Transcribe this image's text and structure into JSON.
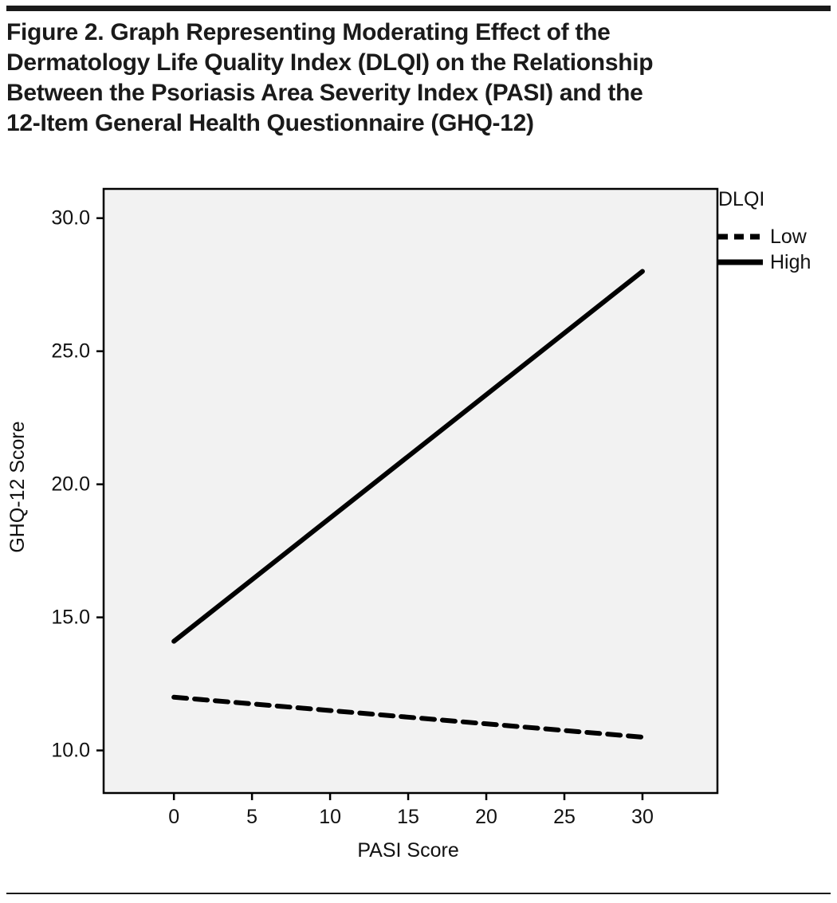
{
  "figure": {
    "title_lines": [
      "Figure 2. Graph Representing Moderating Effect of the",
      "Dermatology Life Quality Index (DLQI) on the Relationship",
      "Between the Psoriasis Area Severity Index (PASI) and the",
      "12-Item General Health Questionnaire (GHQ-12)"
    ]
  },
  "chart_data": {
    "type": "line",
    "title": "Figure 2. Graph Representing Moderating Effect of the Dermatology Life Quality Index (DLQI) on the Relationship Between the Psoriasis Area Severity Index (PASI) and the 12-Item General Health Questionnaire (GHQ-12)",
    "xlabel": "PASI Score",
    "ylabel": "GHQ-12 Score",
    "x_ticks": [
      0,
      5,
      10,
      15,
      20,
      25,
      30
    ],
    "x_tick_labels": [
      "0",
      "5",
      "10",
      "15",
      "20",
      "25",
      "30"
    ],
    "y_ticks": [
      10,
      15,
      20,
      25,
      30
    ],
    "y_tick_labels": [
      "10.0",
      "15.0",
      "20.0",
      "25.0",
      "30.0"
    ],
    "xlim": [
      -4.5,
      34.8
    ],
    "ylim": [
      8.4,
      31.1
    ],
    "grid": false,
    "plot_background": "#f2f2f2",
    "line_color": "#000000",
    "legend": {
      "title": "DLQI",
      "position": "top-right-outside",
      "entries": [
        "Low",
        "High"
      ]
    },
    "series": [
      {
        "name": "Low",
        "style": "dashed",
        "x": [
          0,
          30
        ],
        "y": [
          12.0,
          10.5
        ]
      },
      {
        "name": "High",
        "style": "solid",
        "x": [
          0,
          30
        ],
        "y": [
          14.1,
          28.0
        ]
      }
    ]
  }
}
